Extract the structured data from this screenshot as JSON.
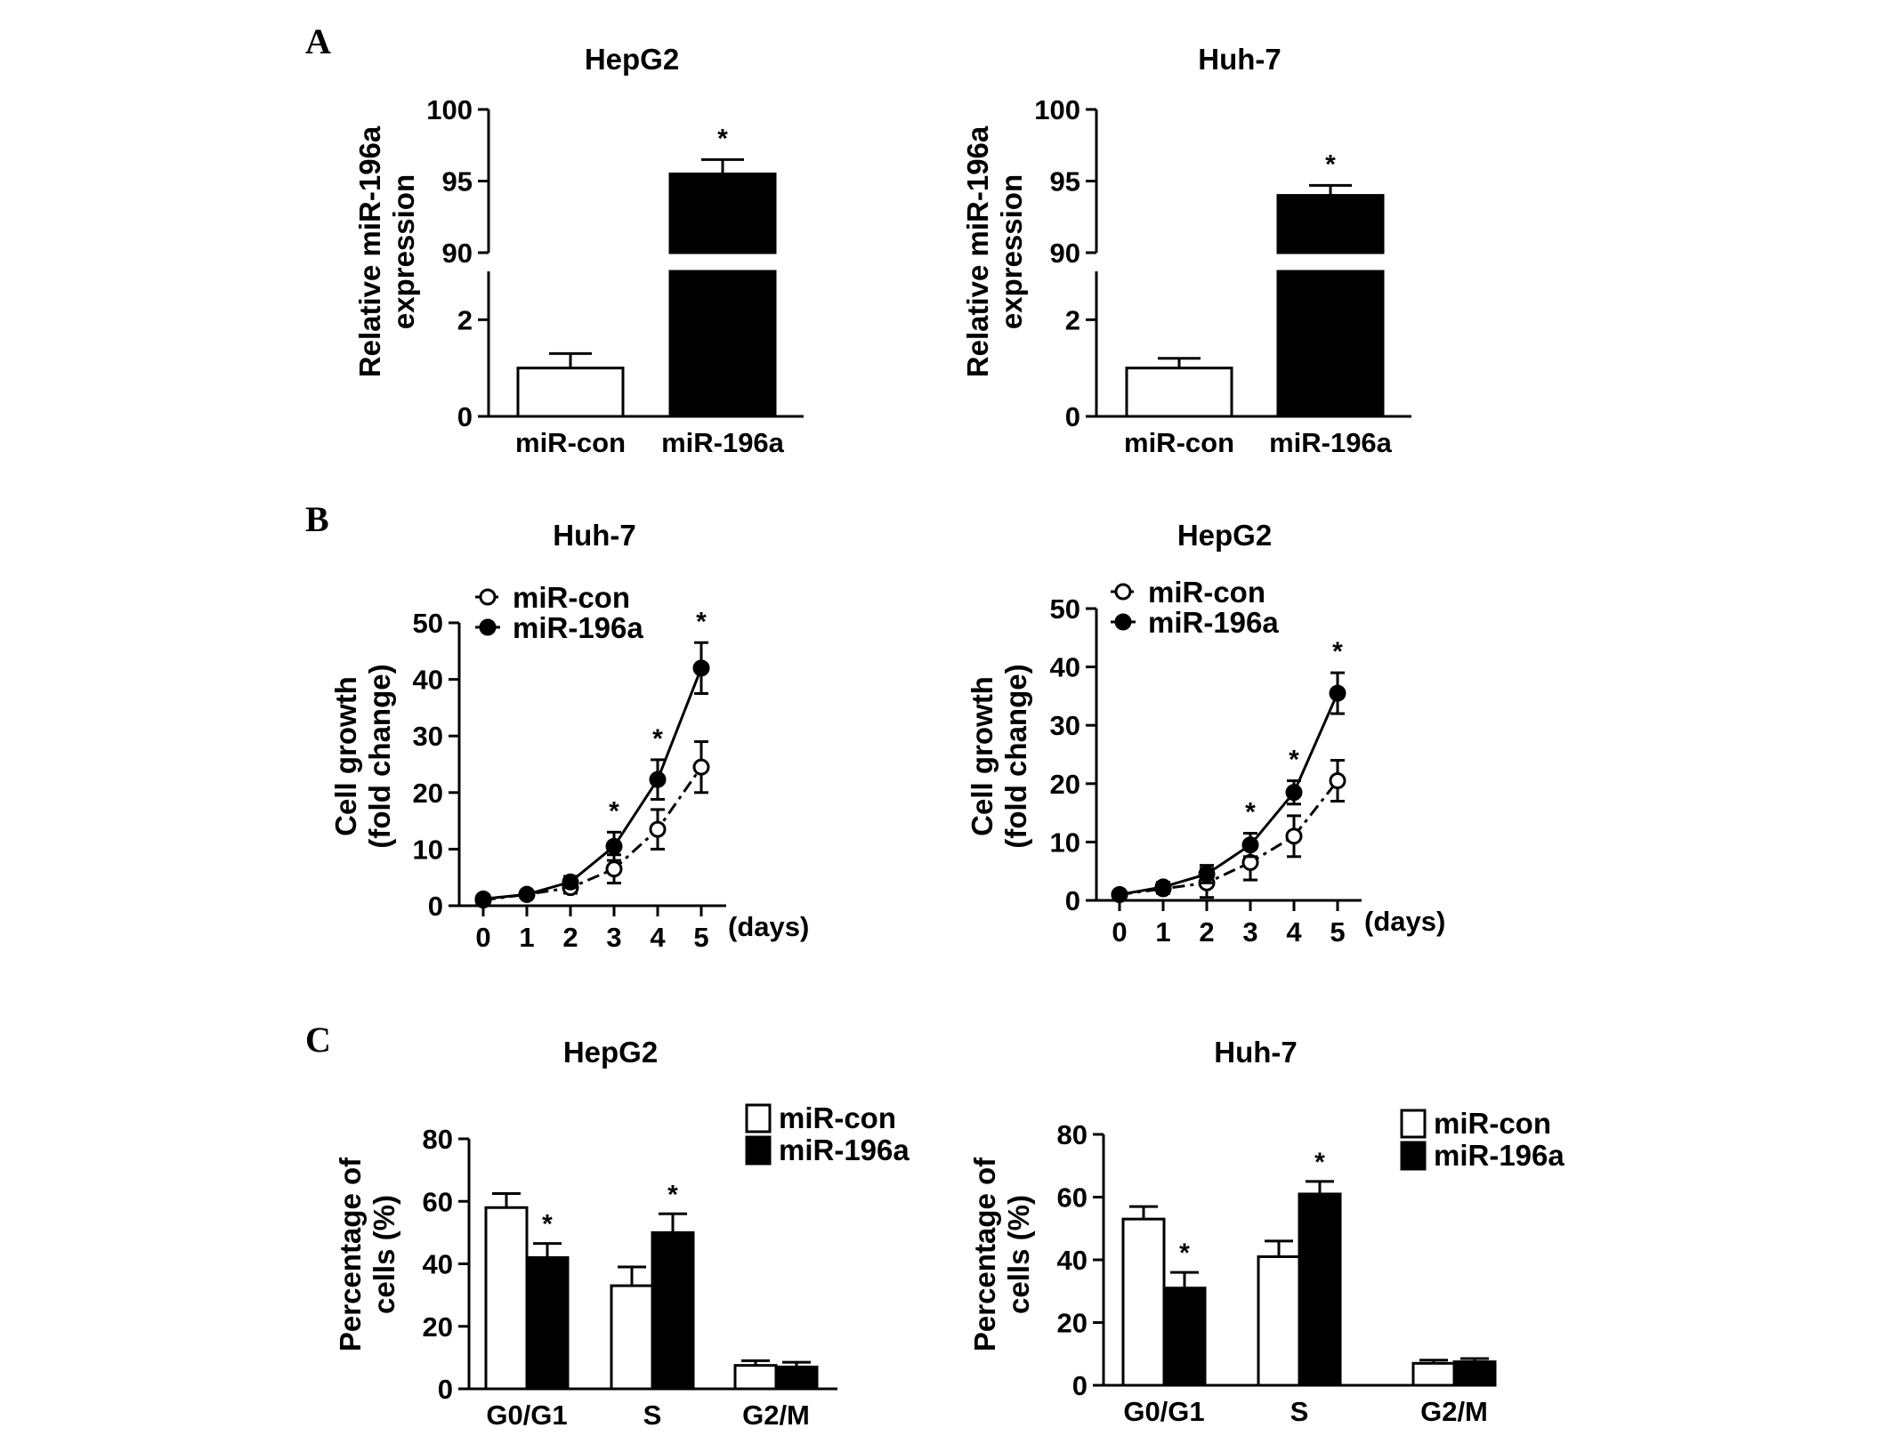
{
  "colors": {
    "ink": "#000000",
    "paper": "#ffffff"
  },
  "panels": [
    {
      "letter": "A"
    },
    {
      "letter": "B"
    },
    {
      "letter": "C"
    }
  ],
  "chart_data": [
    {
      "id": "A1",
      "panel": "A",
      "type": "bar",
      "title": "HepG2",
      "ylabel": [
        "Relative miR-196a",
        "expression"
      ],
      "xlabel": "",
      "categories": [
        "miR-con",
        "miR-196a"
      ],
      "values": [
        1.0,
        95.5
      ],
      "errors": [
        0.3,
        1.0
      ],
      "fills": [
        "#ffffff",
        "#000000"
      ],
      "broken_axis": {
        "lower": [
          0,
          3
        ],
        "upper": [
          90,
          100
        ]
      },
      "lower_ticks": [
        "0",
        "2"
      ],
      "upper_ticks": [
        "90",
        "95",
        "100"
      ],
      "significance": [
        "",
        "*"
      ]
    },
    {
      "id": "A2",
      "panel": "A",
      "type": "bar",
      "title": "Huh-7",
      "ylabel": [
        "Relative miR-196a",
        "expression"
      ],
      "xlabel": "",
      "categories": [
        "miR-con",
        "miR-196a"
      ],
      "values": [
        1.0,
        94.0
      ],
      "errors": [
        0.2,
        0.7
      ],
      "fills": [
        "#ffffff",
        "#000000"
      ],
      "broken_axis": {
        "lower": [
          0,
          3
        ],
        "upper": [
          90,
          100
        ]
      },
      "lower_ticks": [
        "0",
        "2"
      ],
      "upper_ticks": [
        "90",
        "95",
        "100"
      ],
      "significance": [
        "",
        "*"
      ]
    },
    {
      "id": "B1",
      "panel": "B",
      "type": "line",
      "title": "Huh-7",
      "ylabel": [
        "Cell growth",
        "(fold change)"
      ],
      "xlabel": "(days)",
      "x": [
        0,
        1,
        2,
        3,
        4,
        5
      ],
      "ylim": [
        0,
        50
      ],
      "yticks": [
        "0",
        "10",
        "20",
        "30",
        "40",
        "50"
      ],
      "xticks": [
        "0",
        "1",
        "2",
        "3",
        "4",
        "5"
      ],
      "series": [
        {
          "name": "miR-con",
          "values": [
            1,
            2,
            3.2,
            6.5,
            13.5,
            24.5
          ],
          "errors": [
            0.5,
            0.6,
            1,
            2.5,
            3.5,
            4.5
          ],
          "style": "open-dashed"
        },
        {
          "name": "miR-196a",
          "values": [
            1.2,
            2,
            4.2,
            10.5,
            22.3,
            42
          ],
          "errors": [
            0.5,
            0.6,
            1,
            2.5,
            3.5,
            4.5
          ],
          "style": "filled-solid"
        }
      ],
      "significance": [
        "",
        "",
        "",
        "*",
        "*",
        "*"
      ]
    },
    {
      "id": "B2",
      "panel": "B",
      "type": "line",
      "title": "HepG2",
      "ylabel": [
        "Cell growth",
        "(fold change)"
      ],
      "xlabel": "(days)",
      "x": [
        0,
        1,
        2,
        3,
        4,
        5
      ],
      "ylim": [
        0,
        50
      ],
      "yticks": [
        "0",
        "10",
        "20",
        "30",
        "40",
        "50"
      ],
      "xticks": [
        "0",
        "1",
        "2",
        "3",
        "4",
        "5"
      ],
      "series": [
        {
          "name": "miR-con",
          "values": [
            1,
            2,
            3,
            6.5,
            11,
            20.5
          ],
          "errors": [
            0.5,
            0.8,
            2.5,
            3,
            3.5,
            3.5
          ],
          "style": "open-dashed"
        },
        {
          "name": "miR-196a",
          "values": [
            1,
            2.3,
            4.5,
            9.5,
            18.5,
            35.5
          ],
          "errors": [
            0.5,
            0.8,
            1.5,
            2,
            2,
            3.5
          ],
          "style": "filled-solid"
        }
      ],
      "significance": [
        "",
        "",
        "",
        "*",
        "*",
        "*"
      ]
    },
    {
      "id": "C1",
      "panel": "C",
      "type": "bar",
      "title": "HepG2",
      "ylabel": [
        "Percentage of",
        "cells (%)"
      ],
      "xlabel": "",
      "categories": [
        "G0/G1",
        "S",
        "G2/M"
      ],
      "ylim": [
        0,
        80
      ],
      "yticks": [
        "0",
        "20",
        "40",
        "60",
        "80"
      ],
      "series": [
        {
          "name": "miR-con",
          "values": [
            58,
            33,
            7.5
          ],
          "errors": [
            4.5,
            6,
            1.5
          ],
          "fill": "#ffffff"
        },
        {
          "name": "miR-196a",
          "values": [
            42,
            50,
            7
          ],
          "errors": [
            4.5,
            6,
            1.5
          ],
          "fill": "#000000"
        }
      ],
      "significance": [
        "*",
        "*",
        ""
      ]
    },
    {
      "id": "C2",
      "panel": "C",
      "type": "bar",
      "title": "Huh-7",
      "ylabel": [
        "Percentage of",
        "cells (%)"
      ],
      "xlabel": "",
      "categories": [
        "G0/G1",
        "S",
        "G2/M"
      ],
      "ylim": [
        0,
        80
      ],
      "yticks": [
        "0",
        "20",
        "40",
        "60",
        "80"
      ],
      "series": [
        {
          "name": "miR-con",
          "values": [
            53,
            41,
            7
          ],
          "errors": [
            4,
            5,
            1
          ],
          "fill": "#ffffff"
        },
        {
          "name": "miR-196a",
          "values": [
            31,
            61,
            7.5
          ],
          "errors": [
            5,
            4,
            1
          ],
          "fill": "#000000"
        }
      ],
      "significance": [
        "*",
        "*",
        ""
      ]
    }
  ]
}
